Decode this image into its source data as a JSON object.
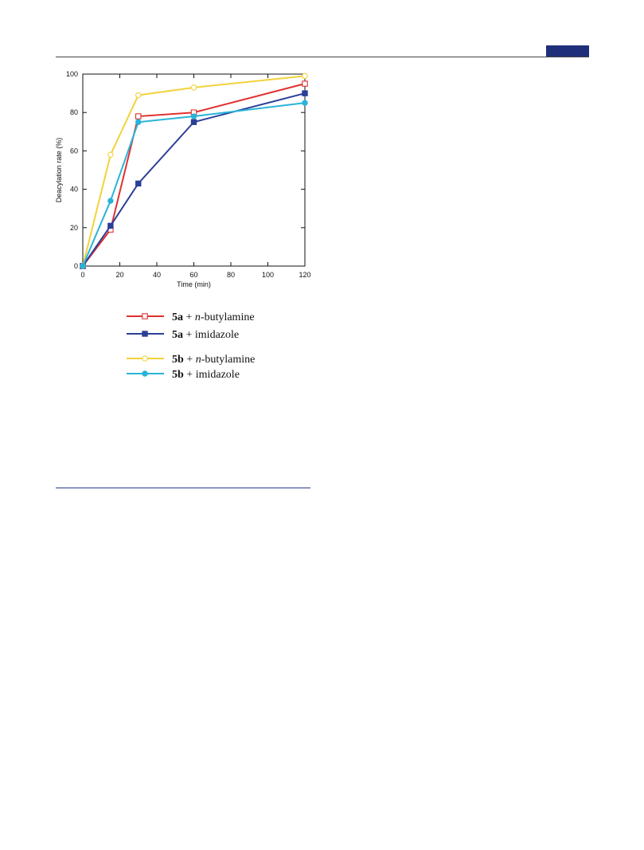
{
  "colors": {
    "header_rule": "#444444",
    "corner_tab": "#1f2f7a",
    "footer_rule": "#2a3b8f"
  },
  "chart_data": {
    "type": "line",
    "title": "",
    "xlabel": "Time (min)",
    "ylabel": "Deacylation rate (%)",
    "xlim": [
      0,
      120
    ],
    "ylim": [
      0,
      100
    ],
    "x_ticks": [
      0,
      20,
      40,
      60,
      80,
      100,
      120
    ],
    "y_ticks": [
      0,
      20,
      40,
      60,
      80,
      100
    ],
    "grid": false,
    "legend_position": "bottom",
    "series": [
      {
        "id": "s1",
        "name": "5a + n-butylamine",
        "compound": "5a",
        "reagent_prefix": " + ",
        "reagent_italic": "n",
        "reagent_rest": "-butylamine",
        "color": "#e03030",
        "marker": "open-square",
        "x": [
          0,
          15,
          30,
          60,
          120
        ],
        "y": [
          0,
          19,
          78,
          80,
          95
        ]
      },
      {
        "id": "s2",
        "name": "5a + imidazole",
        "compound": "5a",
        "reagent_prefix": " + ",
        "reagent_italic": "",
        "reagent_rest": "imidazole",
        "color": "#2b3f98",
        "marker": "filled-square",
        "x": [
          0,
          15,
          30,
          60,
          120
        ],
        "y": [
          0,
          21,
          43,
          75,
          90
        ]
      },
      {
        "id": "s3",
        "name": "5b + n-butylamine",
        "compound": "5b",
        "reagent_prefix": " + ",
        "reagent_italic": "n",
        "reagent_rest": "-butylamine",
        "color": "#f2d23a",
        "marker": "open-circle",
        "x": [
          0,
          15,
          30,
          60,
          120
        ],
        "y": [
          0,
          58,
          89,
          93,
          99
        ]
      },
      {
        "id": "s4",
        "name": "5b + imidazole",
        "compound": "5b",
        "reagent_prefix": " + ",
        "reagent_italic": "",
        "reagent_rest": "imidazole",
        "color": "#27b4d8",
        "marker": "filled-circle",
        "x": [
          0,
          15,
          30,
          60,
          120
        ],
        "y": [
          0,
          34,
          75,
          78,
          85
        ]
      }
    ]
  }
}
